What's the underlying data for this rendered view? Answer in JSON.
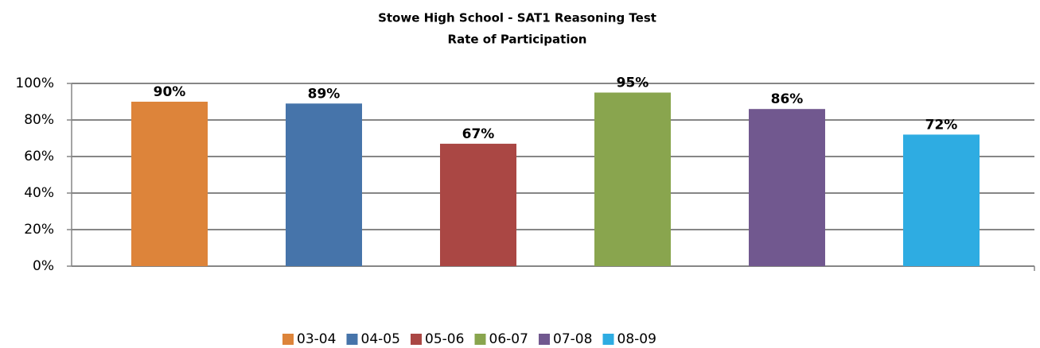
{
  "chart_data": {
    "type": "bar",
    "title": [
      "Stowe High School - SAT1 Reasoning Test",
      "Rate of Participation"
    ],
    "categories": [
      "03-04",
      "04-05",
      "05-06",
      "06-07",
      "07-08",
      "08-09"
    ],
    "values": [
      90,
      89,
      67,
      95,
      86,
      72
    ],
    "value_labels": [
      "90%",
      "89%",
      "67%",
      "95%",
      "86%",
      "72%"
    ],
    "colors": [
      "#dd843a",
      "#4674aa",
      "#aa4744",
      "#89a54e",
      "#71588f",
      "#2eace2"
    ],
    "ylim": [
      0,
      100
    ],
    "yticks": [
      {
        "value": 0,
        "label": "0%"
      },
      {
        "value": 20,
        "label": "20%"
      },
      {
        "value": 40,
        "label": "40%"
      },
      {
        "value": 60,
        "label": "60%"
      },
      {
        "value": 80,
        "label": "80%"
      },
      {
        "value": 100,
        "label": "100%"
      }
    ],
    "grid": true,
    "legend": "bottom"
  }
}
